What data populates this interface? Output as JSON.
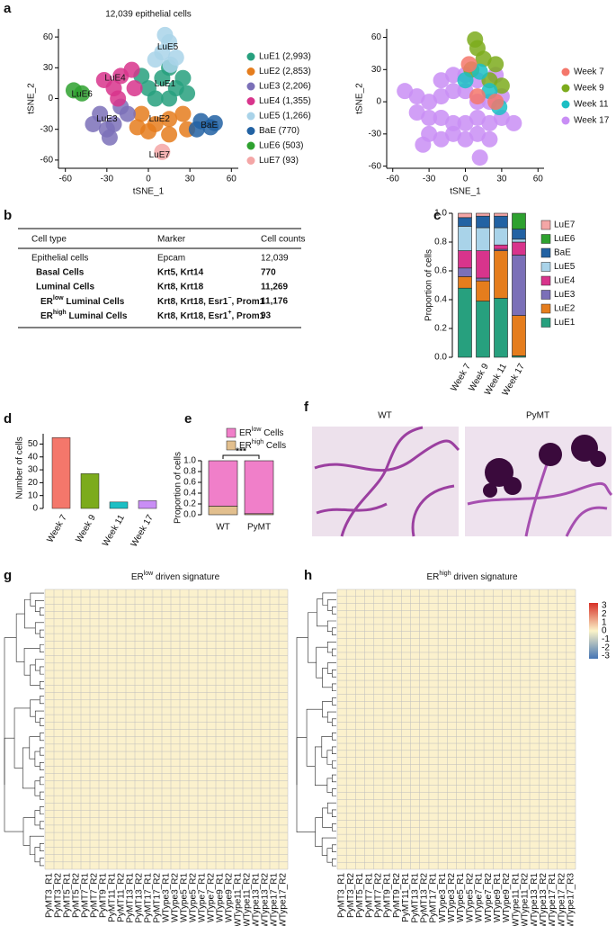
{
  "panel_labels": [
    "a",
    "b",
    "c",
    "d",
    "e",
    "f",
    "g",
    "h"
  ],
  "table": {
    "header": [
      "Cell type",
      "Marker",
      "Cell counts"
    ],
    "rows": [
      [
        "Epithelial cells",
        "Epcam",
        "12,039"
      ],
      [
        "Basal Cells",
        "Krt5, Krt14",
        "770"
      ],
      [
        "Luminal Cells",
        "Krt8, Krt18",
        "11,269"
      ],
      [
        {
          "prefix": "ER",
          "sup": "low",
          "rest": " Luminal Cells"
        },
        {
          "prefix": "Krt8, Krt18, Esr1",
          "sup": "−",
          "rest": ", Prom1"
        },
        "11,176"
      ],
      [
        {
          "prefix": "ER",
          "sup": "high",
          "rest": " Luminal Cells"
        },
        {
          "prefix": "Krt8, Krt18, Esr1",
          "sup": "+",
          "rest": ", Prom1"
        },
        "93"
      ]
    ]
  },
  "images": {
    "labels": [
      "WT",
      "PyMT"
    ]
  },
  "chart_data": [
    {
      "type": "scatter",
      "title": "12,039 epithelial cells",
      "x_label": "tSNE_1",
      "y_label": "tSNE_2",
      "xlim": [
        -65,
        65
      ],
      "ylim": [
        -68,
        68
      ],
      "xticks": [
        -60,
        -30,
        0,
        30,
        60
      ],
      "yticks": [
        60,
        30,
        0,
        -30,
        -60
      ],
      "series": [
        {
          "name": "LuE1 (2,993)",
          "color": "#27a07e",
          "x": [
            0,
            10,
            20,
            5,
            15,
            25,
            -5,
            15,
            28
          ],
          "y": [
            10,
            20,
            10,
            0,
            0,
            20,
            22,
            30,
            5
          ]
        },
        {
          "name": "LuE2 (2,853)",
          "color": "#e57d1d",
          "x": [
            -5,
            5,
            15,
            25,
            0,
            15,
            -8,
            28
          ],
          "y": [
            -15,
            -25,
            -20,
            -15,
            -32,
            -35,
            -28,
            -30
          ]
        },
        {
          "name": "LuE3 (2,206)",
          "color": "#7b70b8",
          "x": [
            -35,
            -25,
            -15,
            -30,
            -20,
            -40,
            -28
          ],
          "y": [
            -15,
            -25,
            -15,
            -30,
            -8,
            -25,
            -38
          ]
        },
        {
          "name": "LuE4 (1,355)",
          "color": "#d8348c",
          "x": [
            -20,
            -10,
            -25,
            -12,
            -22,
            -32
          ],
          "y": [
            22,
            10,
            10,
            28,
            0,
            18
          ]
        },
        {
          "name": "LuE5 (1,266)",
          "color": "#a9d3e9",
          "x": [
            10,
            15,
            5,
            20,
            12,
            16
          ],
          "y": [
            45,
            55,
            38,
            40,
            62,
            33
          ]
        },
        {
          "name": "BaE (770)",
          "color": "#2262a3",
          "x": [
            38,
            45,
            35,
            48
          ],
          "y": [
            -22,
            -28,
            -30,
            -24
          ]
        },
        {
          "name": "LuE6 (503)",
          "color": "#2ea12f",
          "x": [
            -54,
            -48
          ],
          "y": [
            8,
            5
          ]
        },
        {
          "name": "LuE7 (93)",
          "color": "#f4a6a6",
          "x": [
            10
          ],
          "y": [
            -52
          ]
        }
      ],
      "annotations": [
        {
          "text": "LuE5",
          "x": 14,
          "y": 50
        },
        {
          "text": "LuE4",
          "x": -24,
          "y": 20
        },
        {
          "text": "LuE1",
          "x": 12,
          "y": 14
        },
        {
          "text": "LuE6",
          "x": -48,
          "y": 4
        },
        {
          "text": "LuE3",
          "x": -30,
          "y": -20
        },
        {
          "text": "LuE2",
          "x": 8,
          "y": -20
        },
        {
          "text": "BaE",
          "x": 44,
          "y": -26
        },
        {
          "text": "LuE7",
          "x": 8,
          "y": -55
        }
      ]
    },
    {
      "type": "scatter",
      "x_label": "tSNE_1",
      "y_label": "tSNE_2",
      "xlim": [
        -65,
        65
      ],
      "ylim": [
        -62,
        68
      ],
      "xticks": [
        -60,
        -30,
        0,
        30,
        60
      ],
      "yticks": [
        60,
        30,
        0,
        -30,
        -60
      ],
      "series": [
        {
          "name": "Week 17",
          "color": "#c98ef5",
          "x": [
            -50,
            -40,
            -30,
            -20,
            -10,
            0,
            10,
            20,
            30,
            -40,
            -30,
            -20,
            -10,
            0,
            10,
            20,
            30,
            -30,
            -20,
            -10,
            0,
            10,
            20,
            -20,
            -10,
            0,
            10,
            -35,
            25,
            40,
            12
          ],
          "y": [
            10,
            5,
            0,
            5,
            10,
            10,
            0,
            0,
            5,
            -10,
            -15,
            -15,
            -20,
            -20,
            -15,
            -20,
            -15,
            -30,
            -35,
            -30,
            -35,
            -30,
            -35,
            20,
            25,
            25,
            20,
            -40,
            25,
            -20,
            -52
          ]
        },
        {
          "name": "Week 9",
          "color": "#7cab1c",
          "x": [
            10,
            15,
            5,
            20,
            25,
            8,
            30
          ],
          "y": [
            50,
            40,
            30,
            20,
            35,
            58,
            15
          ]
        },
        {
          "name": "Week 11",
          "color": "#1cbfc4",
          "x": [
            20,
            0,
            28,
            12
          ],
          "y": [
            10,
            20,
            -5,
            28
          ]
        },
        {
          "name": "Week 7",
          "color": "#f4776b",
          "x": [
            10,
            25,
            3
          ],
          "y": [
            5,
            0,
            35
          ]
        }
      ],
      "legend_order": [
        3,
        1,
        2,
        0
      ]
    },
    {
      "type": "stacked-bar",
      "y_label": "Proportion of cells",
      "categories": [
        "Week 7",
        "Week 9",
        "Week 11",
        "Week 17"
      ],
      "ylim": [
        0,
        1
      ],
      "yticks": [
        {
          "value": 0,
          "label": "0.0"
        },
        {
          "value": 0.2,
          "label": "0.2"
        },
        {
          "value": 0.4,
          "label": "0.4"
        },
        {
          "value": 0.6,
          "label": "0.6"
        },
        {
          "value": 0.8,
          "label": "0.8"
        },
        {
          "value": 1,
          "label": "1.0"
        }
      ],
      "series": [
        {
          "name": "LuE1",
          "color": "#27a07e",
          "values": [
            0.48,
            0.39,
            0.41,
            0.01
          ]
        },
        {
          "name": "LuE2",
          "color": "#e57d1d",
          "values": [
            0.08,
            0.14,
            0.33,
            0.28
          ]
        },
        {
          "name": "LuE3",
          "color": "#7b70b8",
          "values": [
            0.06,
            0.02,
            0.01,
            0.42
          ]
        },
        {
          "name": "LuE4",
          "color": "#d8348c",
          "values": [
            0.12,
            0.19,
            0.03,
            0.09
          ]
        },
        {
          "name": "LuE5",
          "color": "#a9d3e9",
          "values": [
            0.17,
            0.16,
            0.12,
            0.02
          ]
        },
        {
          "name": "BaE",
          "color": "#2262a3",
          "values": [
            0.06,
            0.08,
            0.08,
            0.07
          ]
        },
        {
          "name": "LuE6",
          "color": "#2ea12f",
          "values": [
            0,
            0,
            0,
            0.11
          ]
        },
        {
          "name": "LuE7",
          "color": "#f4a6a6",
          "values": [
            0.03,
            0.02,
            0.02,
            0
          ]
        }
      ]
    },
    {
      "type": "bar",
      "y_label": "Number of cells",
      "categories": [
        "Week 7",
        "Week 9",
        "Week 11",
        "Week 17"
      ],
      "values": [
        55,
        27,
        5,
        6
      ],
      "colors": [
        "#f4776b",
        "#7cab1c",
        "#1cbfc4",
        "#c98ef5"
      ],
      "ylim": [
        0,
        58
      ],
      "yticks": [
        0,
        10,
        20,
        30,
        40,
        50
      ]
    },
    {
      "type": "stacked-bar",
      "y_label": "Proportion of cells",
      "categories": [
        "WT",
        "PyMT"
      ],
      "ylim": [
        0,
        1
      ],
      "yticks": [
        {
          "value": 0,
          "label": "0.0"
        },
        {
          "value": 0.2,
          "label": "0.2"
        },
        {
          "value": 0.4,
          "label": "0.4"
        },
        {
          "value": 0.6,
          "label": "0.6"
        },
        {
          "value": 0.8,
          "label": "0.8"
        },
        {
          "value": 1,
          "label": "1.0"
        }
      ],
      "series": [
        {
          "name": {
            "prefix": "ER",
            "sup": "high",
            "rest": " Cells"
          },
          "color": "#e2bf8e",
          "values": [
            0.16,
            0.02
          ]
        },
        {
          "name": {
            "prefix": "ER",
            "sup": "low",
            "rest": " Cells"
          },
          "color": "#f07fc9",
          "values": [
            0.84,
            0.98
          ]
        }
      ],
      "annotation": "***"
    },
    {
      "type": "heatmap",
      "title": {
        "prefix": "ER",
        "sup": "low",
        "rest": " driven signature"
      },
      "columns": [
        "PyMT3_R1",
        "PyMT3_R2",
        "PyMT5_R1",
        "PyMT5_R2",
        "PyMT7_R1",
        "PyMT7_R2",
        "PyMT9_R1",
        "PyMT11_R1",
        "PyMT11_R2",
        "PyMT13_R1",
        "PyMT13_R2",
        "PyMT17_R1",
        "PyMT17_R2",
        "WType3_R1",
        "WType3_R2",
        "WType5_R1",
        "WType5_R2",
        "WType7_R1",
        "WType7_R2",
        "WType9_R1",
        "WType9_R2",
        "WType11_R1",
        "WType11_R2",
        "WType13_R1",
        "WType13_R2",
        "WType17_R1",
        "WType17_R2"
      ]
    },
    {
      "type": "heatmap",
      "title": {
        "prefix": "ER",
        "sup": "high",
        "rest": " driven signature"
      },
      "columns": [
        "PyMT3_R1",
        "PyMT3_R2",
        "PyMT5_R1",
        "PyMT7_R1",
        "PyMT7_R2",
        "PyMT9_R1",
        "PyMT9_R2",
        "PyMT11_R1",
        "PyMT13_R1",
        "PyMT13_R2",
        "PyMT17_R1",
        "WType3_R1",
        "WType3_R2",
        "WType5_R1",
        "WType5_R2",
        "WType7_R1",
        "WType7_R2",
        "WType9_R1",
        "WType9_R2",
        "WType11_R1",
        "WType11_R2",
        "WType13_R1",
        "WType13_R2",
        "WType17_R1",
        "WType17_R2",
        "WType17_R3"
      ],
      "colorbar": {
        "ticks": [
          3,
          2,
          1,
          0,
          -1,
          -2,
          -3
        ],
        "colors": [
          "#d73027",
          "#fbf3c8",
          "#4575b4"
        ]
      }
    }
  ]
}
